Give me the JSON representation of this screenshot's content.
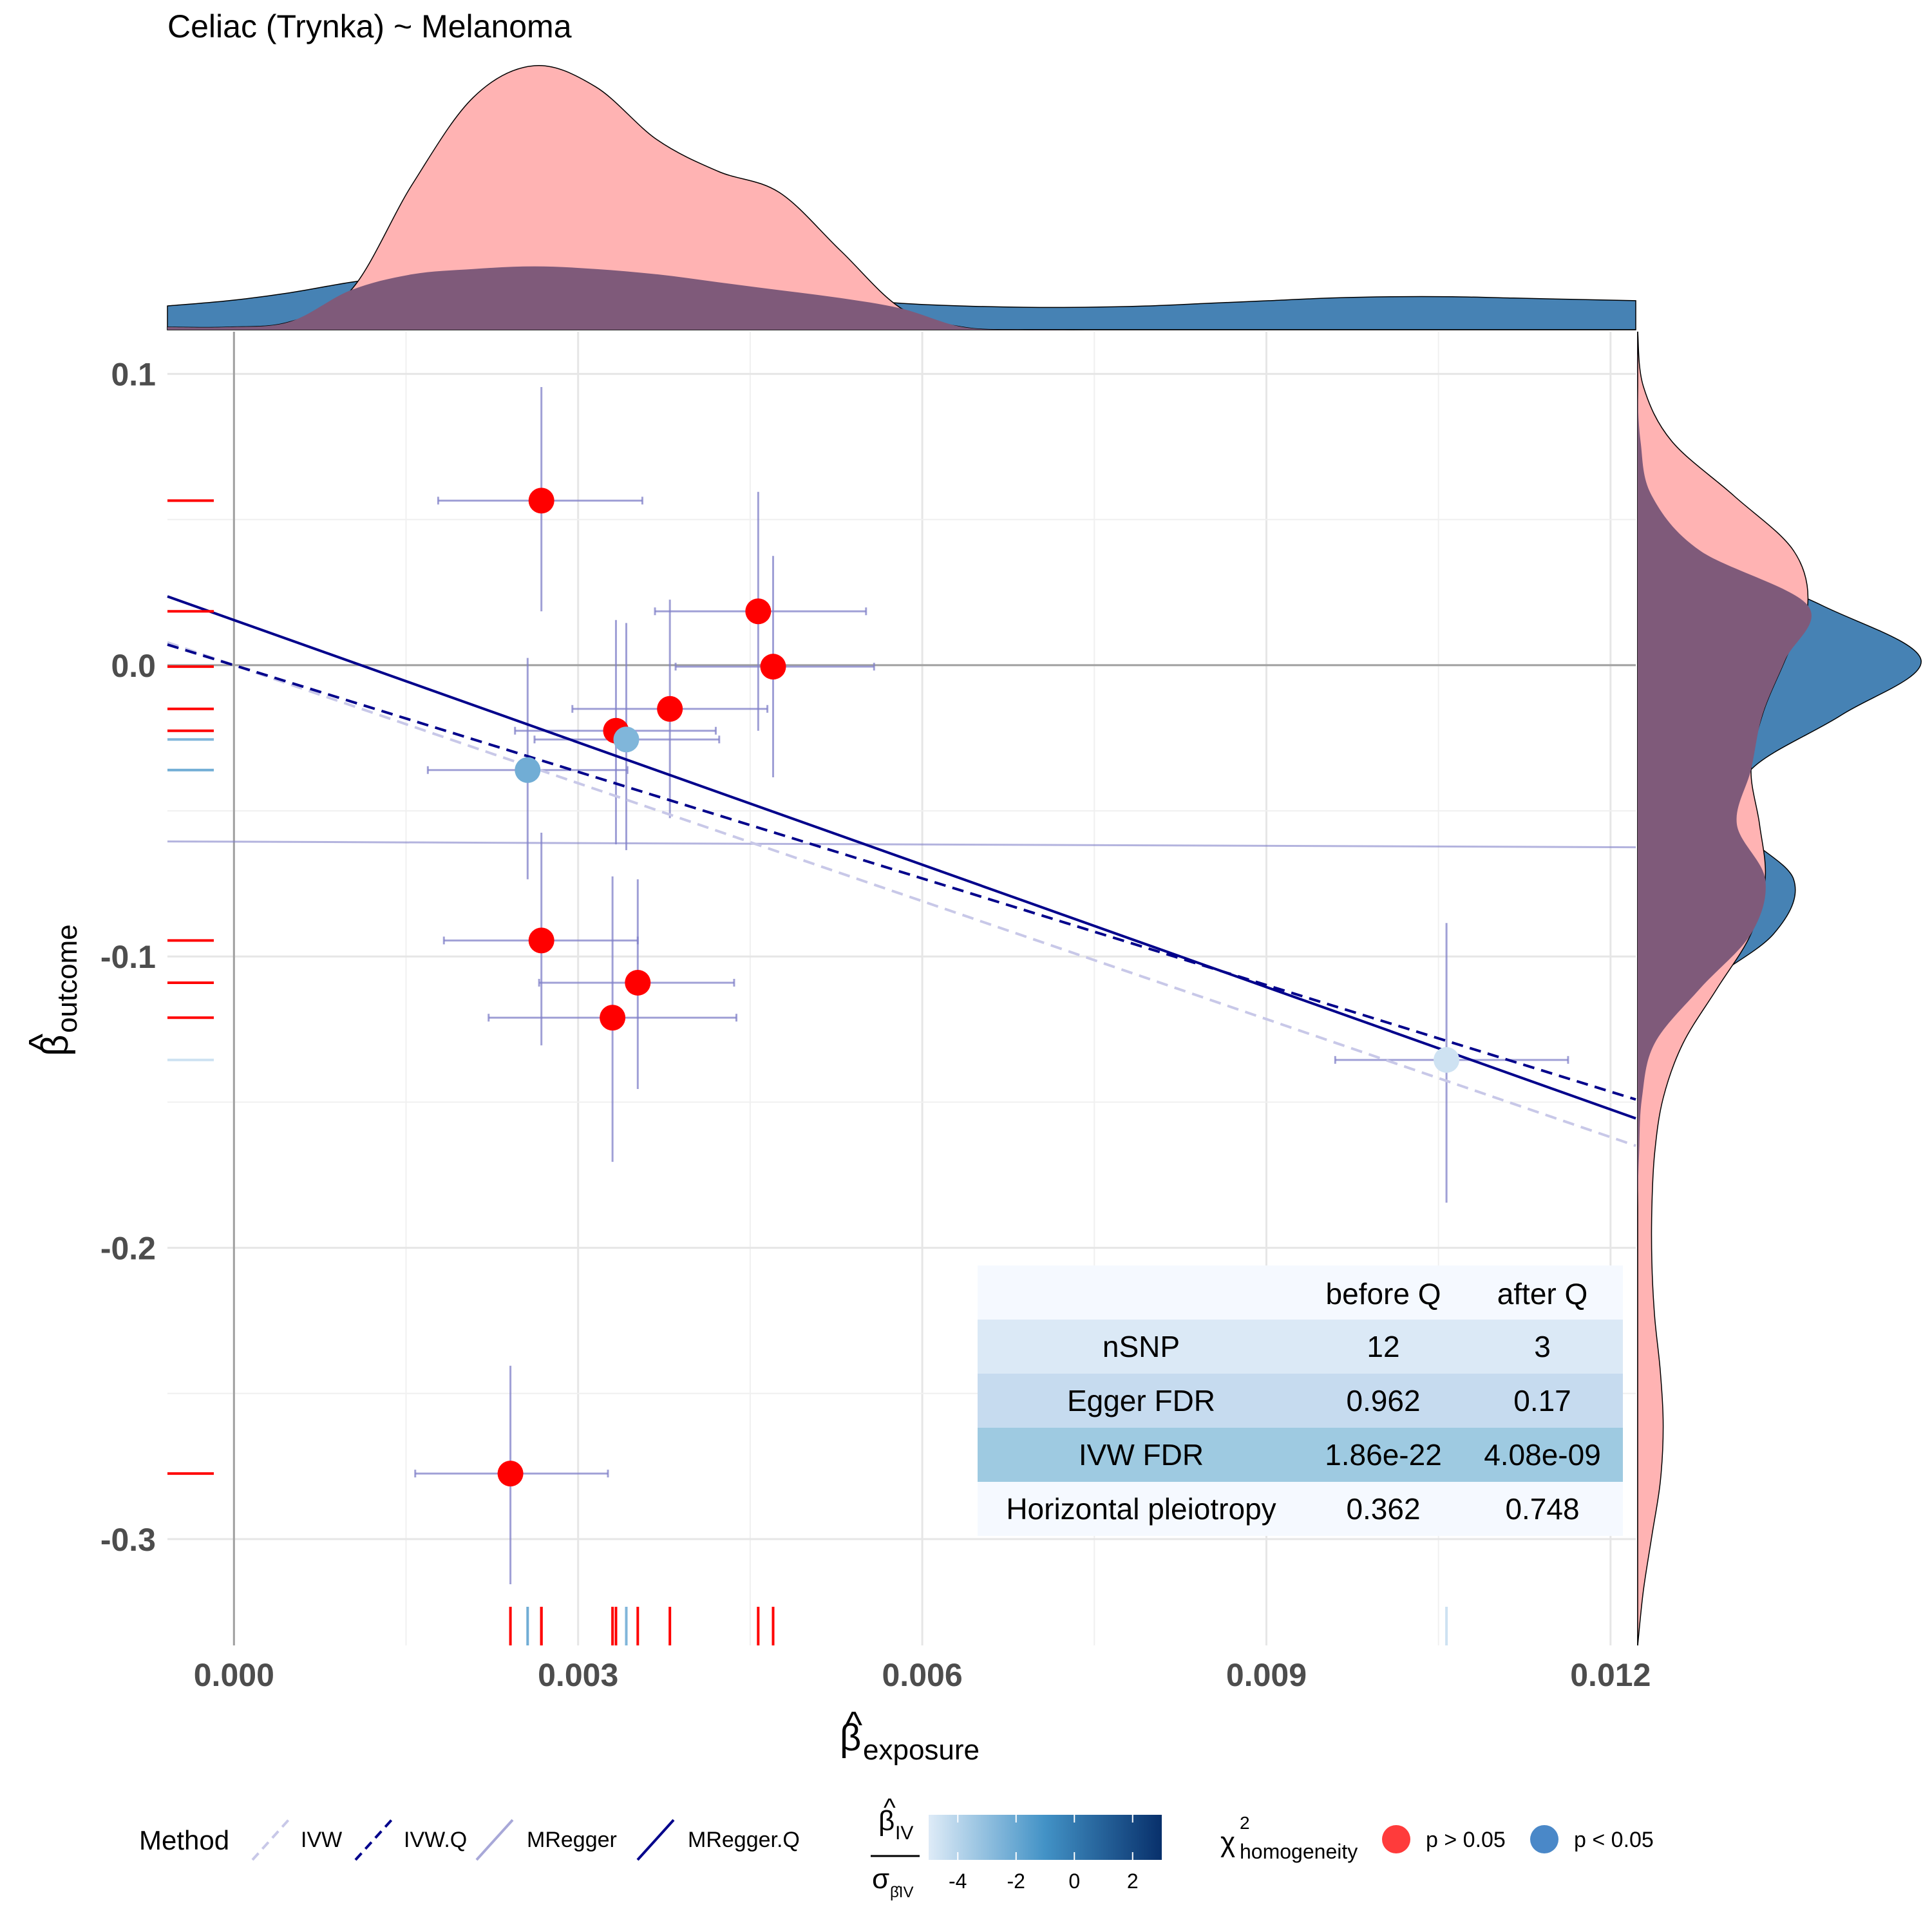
{
  "chart_data": {
    "type": "scatter",
    "title": "Celiac (Trynka) ~ Melanoma",
    "xlabel": "β̂exposure",
    "xlabel_main": "β",
    "xlabel_sub": "exposure",
    "ylabel": "β̂outcome",
    "ylabel_main": "β",
    "ylabel_sub": "outcome",
    "xlim": [
      -0.00058,
      0.01222
    ],
    "ylim": [
      -0.3365,
      0.1145
    ],
    "x_ticks": [
      0.0,
      0.003,
      0.006,
      0.009,
      0.012
    ],
    "x_tick_labels": [
      "0.000",
      "0.003",
      "0.006",
      "0.009",
      "0.012"
    ],
    "y_ticks": [
      0.1,
      0.0,
      -0.1,
      -0.2,
      -0.3
    ],
    "y_tick_labels": [
      "0.1",
      "0.0",
      "-0.1",
      "-0.2",
      "-0.3"
    ],
    "grid": true,
    "points": [
      {
        "x": 0.00268,
        "y": 0.0565,
        "x_lo": 0.00178,
        "x_hi": 0.00356,
        "y_lo": 0.0185,
        "y_hi": 0.0955,
        "group": "p > 0.05"
      },
      {
        "x": 0.00457,
        "y": 0.0185,
        "x_lo": 0.00367,
        "x_hi": 0.00551,
        "y_lo": -0.0225,
        "y_hi": 0.0595,
        "group": "p > 0.05"
      },
      {
        "x": 0.0047,
        "y": -0.0005,
        "x_lo": 0.00385,
        "x_hi": 0.00558,
        "y_lo": -0.0385,
        "y_hi": 0.0375,
        "group": "p > 0.05"
      },
      {
        "x": 0.0038,
        "y": -0.015,
        "x_lo": 0.00295,
        "x_hi": 0.00465,
        "y_lo": -0.0525,
        "y_hi": 0.0225,
        "group": "p > 0.05"
      },
      {
        "x": 0.00333,
        "y": -0.0225,
        "x_lo": 0.00245,
        "x_hi": 0.0042,
        "y_lo": -0.0615,
        "y_hi": 0.0155,
        "group": "p > 0.05"
      },
      {
        "x": 0.00342,
        "y": -0.0255,
        "x_lo": 0.00262,
        "x_hi": 0.00423,
        "y_lo": -0.0635,
        "y_hi": 0.0145,
        "group": "p < 0.05",
        "z": -2.6
      },
      {
        "x": 0.00256,
        "y": -0.036,
        "x_lo": 0.00169,
        "x_hi": 0.00343,
        "y_lo": -0.0735,
        "y_hi": 0.0025,
        "group": "p < 0.05",
        "z": -2.2
      },
      {
        "x": 0.00268,
        "y": -0.0945,
        "x_lo": 0.00183,
        "x_hi": 0.00352,
        "y_lo": -0.1305,
        "y_hi": -0.0575,
        "group": "p > 0.05"
      },
      {
        "x": 0.00352,
        "y": -0.109,
        "x_lo": 0.00266,
        "x_hi": 0.00436,
        "y_lo": -0.1455,
        "y_hi": -0.0735,
        "group": "p > 0.05"
      },
      {
        "x": 0.0033,
        "y": -0.121,
        "x_lo": 0.00222,
        "x_hi": 0.00438,
        "y_lo": -0.1705,
        "y_hi": -0.0725,
        "group": "p > 0.05"
      },
      {
        "x": 0.01057,
        "y": -0.1355,
        "x_lo": 0.0096,
        "x_hi": 0.01163,
        "y_lo": -0.1845,
        "y_hi": -0.0885,
        "group": "p < 0.05",
        "z": -4.6
      },
      {
        "x": 0.00241,
        "y": -0.2775,
        "x_lo": 0.00158,
        "x_hi": 0.00326,
        "y_lo": -0.3155,
        "y_hi": -0.2405,
        "group": "p > 0.05"
      }
    ],
    "horizontal_error_line": {
      "y_start": -0.0605,
      "y_end": -0.0625
    },
    "lines": [
      {
        "name": "IVW",
        "intercept": 0.0,
        "slope": -13.5,
        "style": "dashed",
        "color": "#c8c8e8"
      },
      {
        "name": "IVW.Q",
        "intercept": 0.0,
        "slope": -12.2,
        "style": "dashed",
        "color": "#00008b"
      },
      {
        "name": "MRegger.Q",
        "intercept": 0.0155,
        "slope": -14.0,
        "style": "solid",
        "color": "#00008b"
      }
    ],
    "top_density": {
      "red": [
        0.01,
        0.01,
        0.03,
        0.15,
        0.55,
        0.88,
        1.0,
        0.92,
        0.72,
        0.6,
        0.52,
        0.3,
        0.08,
        0.01,
        0.0,
        0.0,
        0.0,
        0.0,
        0.0,
        0.0,
        0.0,
        0.0,
        0.0,
        0.0,
        0.0
      ],
      "blue": [
        0.09,
        0.11,
        0.14,
        0.18,
        0.21,
        0.23,
        0.24,
        0.23,
        0.21,
        0.18,
        0.15,
        0.12,
        0.1,
        0.09,
        0.085,
        0.085,
        0.09,
        0.1,
        0.11,
        0.12,
        0.125,
        0.125,
        0.12,
        0.115,
        0.11
      ]
    },
    "right_density": {
      "red": [
        0.0,
        0.02,
        0.12,
        0.34,
        0.55,
        0.6,
        0.52,
        0.44,
        0.4,
        0.43,
        0.45,
        0.4,
        0.28,
        0.16,
        0.09,
        0.06,
        0.05,
        0.05,
        0.06,
        0.08,
        0.09,
        0.08,
        0.05,
        0.02,
        0.0
      ],
      "blue": [
        0.0,
        0.0,
        0.01,
        0.05,
        0.22,
        0.65,
        1.0,
        0.72,
        0.4,
        0.35,
        0.55,
        0.48,
        0.22,
        0.06,
        0.015,
        0.005,
        0.0,
        0.0,
        0.0,
        0.0,
        0.0,
        0.0,
        0.0,
        0.0,
        0.0
      ]
    },
    "table": {
      "headers": [
        "",
        "before Q",
        "after Q"
      ],
      "rows": [
        {
          "label": "nSNP",
          "before": "12",
          "after": "3"
        },
        {
          "label": "Egger FDR",
          "before": "0.962",
          "after": "0.17"
        },
        {
          "label": "IVW FDR",
          "before": "1.86e-22",
          "after": "4.08e-09"
        },
        {
          "label": "Horizontal pleiotropy",
          "before": "0.362",
          "after": "0.748"
        }
      ]
    },
    "legend": {
      "method_title": "Method",
      "methods": [
        "IVW",
        "IVW.Q",
        "MRegger",
        "MRegger.Q"
      ],
      "colorbar_title_num": "β̂IV",
      "colorbar_title_num_main": "β",
      "colorbar_title_num_sub": "IV",
      "colorbar_title_den": "σβ̂IV",
      "colorbar_title_den_main": "σ",
      "colorbar_title_den_sub": "β̂IV",
      "colorbar_ticks": [
        "-4",
        "-2",
        "0",
        "2"
      ],
      "colorbar_range": [
        -5,
        3
      ],
      "chi_title_main": "χ",
      "chi_title_sup": "2",
      "chi_title_sub": "homogeneity",
      "groups": [
        "p > 0.05",
        "p < 0.05"
      ]
    },
    "colors": {
      "point_red": "#ff0000",
      "point_blue": "#5a9bd4",
      "errorbar": "#8080c8",
      "density_red": "#ffb3b3",
      "density_blue": "#4682b4",
      "density_overlap": "#7f5a7a",
      "axis_zero": "#a0a0a0",
      "grid": "#e6e6e6",
      "table_band_1": "#f5f9ff",
      "table_band_2": "#dbe9f6",
      "table_band_3": "#c6dbef",
      "table_band_4": "#9ecae1"
    }
  }
}
